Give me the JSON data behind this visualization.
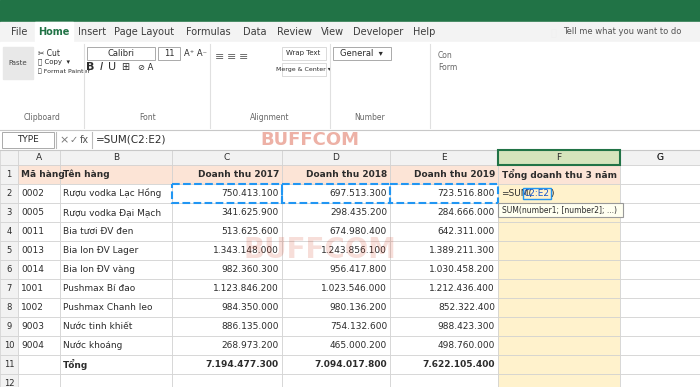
{
  "tab_names": [
    "File",
    "Home",
    "Insert",
    "Page Layout",
    "Formulas",
    "Data",
    "Review",
    "View",
    "Developer",
    "Help"
  ],
  "active_tab": "Home",
  "formula_bar_text": "=SUM(C2:E2)",
  "cell_name": "TYPE",
  "header_row": [
    "Mã hàng",
    "Tên hàng",
    "Doanh thu 2017",
    "Doanh thu 2018",
    "Doanh thu 2019",
    "Tổng doanh thu 3 năm"
  ],
  "col_letters": [
    "",
    "A",
    "B",
    "C",
    "D",
    "E",
    "F",
    "G"
  ],
  "header_bg": "#fce4d6",
  "selected_col_bg": "#fff2cc",
  "data_rows": [
    [
      "0002",
      "Rượu vodka Lạc Hồng",
      "750.413.100",
      "697.513.300",
      "723.516.800",
      ""
    ],
    [
      "0005",
      "Rượu vodka Đại Mạch",
      "341.625.900",
      "298.435.200",
      "284.666.000",
      ""
    ],
    [
      "0011",
      "Bia tươi ĐV đen",
      "513.625.600",
      "674.980.400",
      "642.311.000",
      ""
    ],
    [
      "0013",
      "Bia lon ĐV Lager",
      "1.343.148.000",
      "1.243.856.100",
      "1.389.211.300",
      ""
    ],
    [
      "0014",
      "Bia lon ĐV vàng",
      "982.360.300",
      "956.417.800",
      "1.030.458.200",
      ""
    ],
    [
      "1001",
      "Pushmax Bí đao",
      "1.123.846.200",
      "1.023.546.000",
      "1.212.436.400",
      ""
    ],
    [
      "1002",
      "Pushmax Chanh leo",
      "984.350.000",
      "980.136.200",
      "852.322.400",
      ""
    ],
    [
      "9003",
      "Nước tinh khiết",
      "886.135.000",
      "754.132.600",
      "988.423.300",
      ""
    ],
    [
      "9004",
      "Nước khoáng",
      "268.973.200",
      "465.000.200",
      "498.760.000",
      ""
    ]
  ],
  "total_row": [
    "",
    "Tổng",
    "7.194.477.300",
    "7.094.017.800",
    "7.622.105.400",
    ""
  ],
  "tooltip_text": "SUM(number1; [number2]; ...)",
  "watermark_text": "BUFFCOM",
  "grid_color": "#d0d0d0",
  "col_header_bg": "#f2f2f2",
  "row_header_bg": "#f2f2f2",
  "tab_widths": [
    28,
    38,
    35,
    65,
    58,
    32,
    42,
    30,
    58,
    30
  ],
  "green_bar": "#217346",
  "ribbon_bg": "#f3f3f3"
}
